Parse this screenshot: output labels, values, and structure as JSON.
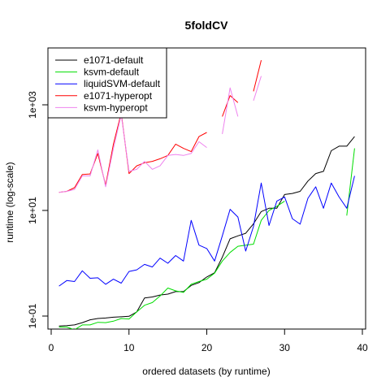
{
  "chart_data": {
    "type": "line",
    "title": "5foldCV",
    "xlabel": "ordered datasets (by runtime)",
    "ylabel": "runtime (log-scale)",
    "y_scale": "log10",
    "xlim": [
      0,
      40
    ],
    "ylim": [
      0.05,
      3000
    ],
    "x_ticks": [
      0,
      10,
      20,
      30,
      40
    ],
    "x_tick_labels": [
      "0",
      "10",
      "20",
      "30",
      "40"
    ],
    "y_ticks": [
      0.1,
      10,
      1000
    ],
    "y_tick_labels": [
      "1e-01",
      "1e+01",
      "1e+03"
    ],
    "grid": false,
    "legend_position": "top-left",
    "series": [
      {
        "name": "e1071-default",
        "color": "#000000",
        "x": [
          1,
          2,
          3,
          4,
          5,
          6,
          7,
          8,
          9,
          10,
          11,
          12,
          13,
          14,
          15,
          16,
          17,
          18,
          19,
          20,
          21,
          22,
          23,
          24,
          25,
          26,
          27,
          28,
          29,
          30,
          31,
          32,
          33,
          34,
          35,
          36,
          37,
          38,
          39
        ],
        "y": [
          0.065,
          0.066,
          0.068,
          0.075,
          0.085,
          0.09,
          0.092,
          0.095,
          0.097,
          0.099,
          0.12,
          0.22,
          0.23,
          0.25,
          0.26,
          0.29,
          0.29,
          0.38,
          0.43,
          0.55,
          0.66,
          1.3,
          2.9,
          3.3,
          3.7,
          5.6,
          9.5,
          11,
          11,
          20,
          21,
          23,
          36,
          50,
          55,
          135,
          165,
          165,
          250
        ]
      },
      {
        "name": "ksvm-default",
        "color": "#00dd00",
        "x": [
          1,
          2,
          3,
          4,
          5,
          6,
          7,
          8,
          9,
          10,
          11,
          12,
          13,
          14,
          15,
          16,
          17,
          18,
          19,
          20,
          21,
          22,
          23,
          24,
          25,
          26,
          27,
          28,
          29,
          30,
          null,
          38,
          39
        ],
        "y": [
          0.062,
          0.062,
          0.055,
          0.068,
          0.068,
          0.076,
          0.075,
          0.08,
          0.09,
          0.088,
          0.12,
          0.16,
          0.18,
          0.24,
          0.34,
          0.3,
          0.28,
          0.4,
          0.45,
          0.5,
          0.65,
          1.1,
          1.6,
          2.1,
          2.2,
          2.3,
          6.5,
          10,
          12,
          15,
          null,
          8,
          150
        ]
      },
      {
        "name": "liquidSVM-default",
        "color": "#0000ff",
        "x": [
          1,
          2,
          3,
          4,
          5,
          6,
          7,
          8,
          9,
          10,
          11,
          12,
          13,
          14,
          15,
          16,
          17,
          18,
          19,
          20,
          21,
          22,
          23,
          24,
          25,
          26,
          27,
          28,
          29,
          30,
          31,
          32,
          33,
          34,
          35,
          36,
          37,
          38,
          39
        ],
        "y": [
          0.37,
          0.47,
          0.45,
          0.72,
          0.52,
          0.53,
          0.4,
          0.5,
          0.42,
          0.7,
          0.75,
          0.95,
          0.85,
          1.25,
          1,
          1.4,
          1.1,
          6.5,
          2.2,
          1.9,
          1.1,
          3.3,
          10.5,
          7.5,
          1.7,
          5,
          33,
          5.2,
          15,
          18,
          7,
          5.5,
          17,
          28,
          11,
          33,
          18,
          11,
          45
        ]
      },
      {
        "name": "e1071-hyperopt",
        "color": "#ff0000",
        "x": [
          1,
          2,
          3,
          4,
          5,
          6,
          7,
          8,
          9,
          10,
          11,
          12,
          13,
          14,
          15,
          16,
          17,
          18,
          19,
          20,
          null,
          22,
          23,
          24,
          null,
          26,
          27
        ],
        "y": [
          22,
          23,
          27,
          48,
          49,
          120,
          30,
          180,
          700,
          50,
          70,
          80,
          85,
          95,
          110,
          180,
          150,
          130,
          250,
          300,
          null,
          600,
          1500,
          1100,
          null,
          1800,
          7000
        ]
      },
      {
        "name": "ksvm-hyperopt",
        "color": "#ee82ee",
        "x": [
          1,
          2,
          3,
          4,
          5,
          6,
          7,
          8,
          9,
          10,
          11,
          12,
          13,
          14,
          15,
          16,
          17,
          18,
          19,
          20,
          null,
          22,
          23,
          24,
          null,
          26,
          27
        ],
        "y": [
          22,
          23,
          25,
          45,
          45,
          140,
          28,
          150,
          650,
          55,
          60,
          85,
          60,
          70,
          110,
          115,
          110,
          120,
          200,
          155,
          null,
          280,
          2100,
          600,
          null,
          1200,
          3500
        ]
      }
    ]
  }
}
